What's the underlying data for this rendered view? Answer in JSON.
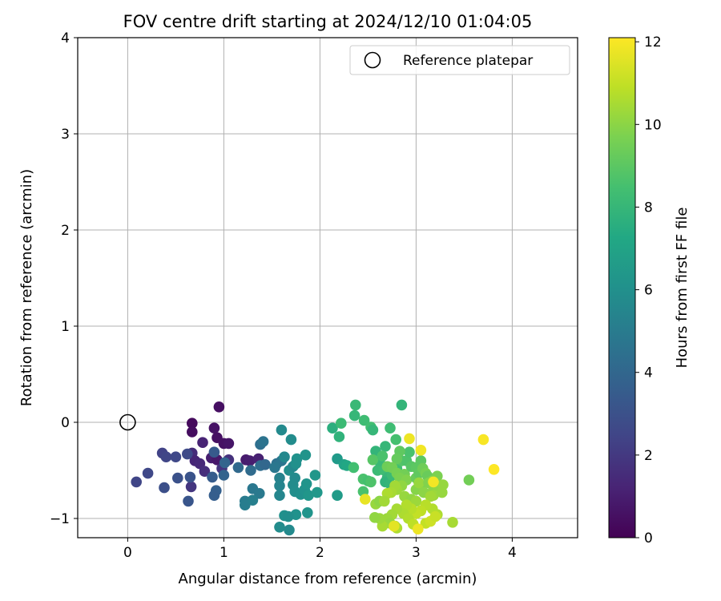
{
  "chart_data": {
    "type": "scatter",
    "title": "FOV centre drift starting at 2024/12/10 01:04:05",
    "xlabel": "Angular distance from reference (arcmin)",
    "ylabel": "Rotation from reference (arcmin)",
    "xlim": [
      -0.52,
      4.68
    ],
    "ylim": [
      -1.2,
      4.0
    ],
    "xticks": [
      "0",
      "1",
      "2",
      "3",
      "4"
    ],
    "yticks": [
      "−1",
      "0",
      "1",
      "2",
      "3",
      "4"
    ],
    "grid": true,
    "legend": {
      "placement": "top-right",
      "entries": [
        "Reference platepar"
      ]
    },
    "reference_point": {
      "x": 0.0,
      "y": 0.0
    },
    "colorbar": {
      "label": "Hours from first FF file",
      "range": [
        0,
        12.1
      ],
      "ticks": [
        "0",
        "2",
        "4",
        "6",
        "8",
        "10",
        "12"
      ],
      "colormap": "viridis"
    },
    "points": [
      {
        "x": 0.67,
        "y": -0.01,
        "c": 0.3
      },
      {
        "x": 0.95,
        "y": 0.16,
        "c": 0.5
      },
      {
        "x": 0.67,
        "y": -0.1,
        "c": 0.4
      },
      {
        "x": 0.9,
        "y": -0.06,
        "c": 0.6
      },
      {
        "x": 0.93,
        "y": -0.16,
        "c": 0.5
      },
      {
        "x": 1.0,
        "y": -0.22,
        "c": 0.6
      },
      {
        "x": 1.05,
        "y": -0.22,
        "c": 0.7
      },
      {
        "x": 0.78,
        "y": -0.21,
        "c": 1.2
      },
      {
        "x": 0.67,
        "y": -0.32,
        "c": 1.5
      },
      {
        "x": 0.7,
        "y": -0.4,
        "c": 1.3
      },
      {
        "x": 0.75,
        "y": -0.43,
        "c": 1.4
      },
      {
        "x": 0.8,
        "y": -0.51,
        "c": 1.6
      },
      {
        "x": 0.87,
        "y": -0.37,
        "c": 1.0
      },
      {
        "x": 0.93,
        "y": -0.39,
        "c": 0.8
      },
      {
        "x": 0.98,
        "y": -0.48,
        "c": 1.8
      },
      {
        "x": 1.05,
        "y": -0.39,
        "c": 1.7
      },
      {
        "x": 0.66,
        "y": -0.67,
        "c": 1.9
      },
      {
        "x": 0.36,
        "y": -0.32,
        "c": 2.4
      },
      {
        "x": 0.4,
        "y": -0.36,
        "c": 2.5
      },
      {
        "x": 0.5,
        "y": -0.36,
        "c": 2.6
      },
      {
        "x": 0.62,
        "y": -0.33,
        "c": 2.7
      },
      {
        "x": 0.21,
        "y": -0.53,
        "c": 2.6
      },
      {
        "x": 0.09,
        "y": -0.62,
        "c": 2.5
      },
      {
        "x": 0.38,
        "y": -0.68,
        "c": 2.9
      },
      {
        "x": 0.52,
        "y": -0.58,
        "c": 3.0
      },
      {
        "x": 0.65,
        "y": -0.57,
        "c": 3.1
      },
      {
        "x": 0.63,
        "y": -0.82,
        "c": 3.2
      },
      {
        "x": 0.9,
        "y": -0.31,
        "c": 3.4
      },
      {
        "x": 0.88,
        "y": -0.57,
        "c": 3.5
      },
      {
        "x": 0.92,
        "y": -0.71,
        "c": 3.7
      },
      {
        "x": 0.9,
        "y": -0.76,
        "c": 3.6
      },
      {
        "x": 1.0,
        "y": -0.55,
        "c": 3.8
      },
      {
        "x": 1.01,
        "y": -0.42,
        "c": 3.9
      },
      {
        "x": 1.23,
        "y": -0.39,
        "c": 0.9
      },
      {
        "x": 1.27,
        "y": -0.4,
        "c": 1.0
      },
      {
        "x": 1.36,
        "y": -0.38,
        "c": 1.1
      },
      {
        "x": 1.15,
        "y": -0.47,
        "c": 4.1
      },
      {
        "x": 1.28,
        "y": -0.5,
        "c": 4.2
      },
      {
        "x": 1.38,
        "y": -0.45,
        "c": 4.3
      },
      {
        "x": 1.43,
        "y": -0.44,
        "c": 4.0
      },
      {
        "x": 1.38,
        "y": -0.23,
        "c": 4.4
      },
      {
        "x": 1.41,
        "y": -0.2,
        "c": 4.6
      },
      {
        "x": 1.3,
        "y": -0.69,
        "c": 4.8
      },
      {
        "x": 1.37,
        "y": -0.74,
        "c": 4.9
      },
      {
        "x": 1.22,
        "y": -0.82,
        "c": 5.0
      },
      {
        "x": 1.22,
        "y": -0.86,
        "c": 5.1
      },
      {
        "x": 1.3,
        "y": -0.81,
        "c": 5.2
      },
      {
        "x": 1.55,
        "y": -0.43,
        "c": 4.5
      },
      {
        "x": 1.6,
        "y": -0.4,
        "c": 4.7
      },
      {
        "x": 1.53,
        "y": -0.47,
        "c": 4.8
      },
      {
        "x": 1.58,
        "y": -0.58,
        "c": 5.3
      },
      {
        "x": 1.58,
        "y": -0.66,
        "c": 5.4
      },
      {
        "x": 1.58,
        "y": -0.76,
        "c": 5.5
      },
      {
        "x": 1.63,
        "y": -0.36,
        "c": 5.6
      },
      {
        "x": 1.6,
        "y": -0.08,
        "c": 5.7
      },
      {
        "x": 1.7,
        "y": -0.18,
        "c": 5.8
      },
      {
        "x": 1.68,
        "y": -0.5,
        "c": 5.9
      },
      {
        "x": 1.72,
        "y": -0.46,
        "c": 5.6
      },
      {
        "x": 1.74,
        "y": -0.58,
        "c": 5.7
      },
      {
        "x": 1.72,
        "y": -0.65,
        "c": 5.8
      },
      {
        "x": 1.74,
        "y": -0.72,
        "c": 5.9
      },
      {
        "x": 1.8,
        "y": -0.75,
        "c": 6.0
      },
      {
        "x": 1.76,
        "y": -0.38,
        "c": 6.1
      },
      {
        "x": 1.75,
        "y": -0.43,
        "c": 6.0
      },
      {
        "x": 1.85,
        "y": -0.34,
        "c": 6.2
      },
      {
        "x": 1.95,
        "y": -0.55,
        "c": 6.3
      },
      {
        "x": 1.84,
        "y": -0.7,
        "c": 6.1
      },
      {
        "x": 1.86,
        "y": -0.64,
        "c": 6.2
      },
      {
        "x": 1.88,
        "y": -0.76,
        "c": 6.3
      },
      {
        "x": 1.97,
        "y": -0.73,
        "c": 6.4
      },
      {
        "x": 1.75,
        "y": -0.96,
        "c": 6.1
      },
      {
        "x": 1.63,
        "y": -0.97,
        "c": 6.0
      },
      {
        "x": 1.67,
        "y": -0.98,
        "c": 5.9
      },
      {
        "x": 1.58,
        "y": -1.09,
        "c": 5.8
      },
      {
        "x": 1.68,
        "y": -1.12,
        "c": 5.7
      },
      {
        "x": 1.87,
        "y": -0.94,
        "c": 6.2
      },
      {
        "x": 2.18,
        "y": -0.38,
        "c": 6.5
      },
      {
        "x": 2.18,
        "y": -0.76,
        "c": 6.6
      },
      {
        "x": 2.25,
        "y": -0.44,
        "c": 7.0
      },
      {
        "x": 2.28,
        "y": -0.45,
        "c": 7.2
      },
      {
        "x": 2.13,
        "y": -0.06,
        "c": 7.6
      },
      {
        "x": 2.2,
        "y": -0.15,
        "c": 7.8
      },
      {
        "x": 2.22,
        "y": -0.01,
        "c": 8.2
      },
      {
        "x": 2.36,
        "y": 0.07,
        "c": 8.0
      },
      {
        "x": 2.37,
        "y": 0.18,
        "c": 8.1
      },
      {
        "x": 2.46,
        "y": 0.02,
        "c": 8.3
      },
      {
        "x": 2.53,
        "y": -0.05,
        "c": 8.4
      },
      {
        "x": 2.55,
        "y": -0.08,
        "c": 8.0
      },
      {
        "x": 2.85,
        "y": 0.18,
        "c": 7.9
      },
      {
        "x": 2.35,
        "y": -0.47,
        "c": 8.4
      },
      {
        "x": 2.45,
        "y": -0.59,
        "c": 8.6
      },
      {
        "x": 2.5,
        "y": -0.61,
        "c": 8.5
      },
      {
        "x": 2.53,
        "y": -0.62,
        "c": 8.7
      },
      {
        "x": 2.45,
        "y": -0.72,
        "c": 8.6
      },
      {
        "x": 2.58,
        "y": -0.3,
        "c": 7.9
      },
      {
        "x": 2.62,
        "y": -0.41,
        "c": 8.1
      },
      {
        "x": 2.55,
        "y": -0.39,
        "c": 8.9
      },
      {
        "x": 2.6,
        "y": -0.5,
        "c": 8.2
      },
      {
        "x": 2.67,
        "y": -0.5,
        "c": 8.3
      },
      {
        "x": 2.7,
        "y": -0.58,
        "c": 8.0
      },
      {
        "x": 2.68,
        "y": -0.62,
        "c": 7.8
      },
      {
        "x": 2.73,
        "y": -0.64,
        "c": 7.9
      },
      {
        "x": 2.75,
        "y": -0.55,
        "c": 8.2
      },
      {
        "x": 2.8,
        "y": -0.48,
        "c": 8.4
      },
      {
        "x": 2.79,
        "y": -0.18,
        "c": 8.5
      },
      {
        "x": 2.73,
        "y": -0.06,
        "c": 8.3
      },
      {
        "x": 2.68,
        "y": -0.25,
        "c": 8.0
      },
      {
        "x": 2.65,
        "y": -0.35,
        "c": 8.6
      },
      {
        "x": 2.85,
        "y": -0.4,
        "c": 8.8
      },
      {
        "x": 2.9,
        "y": -0.4,
        "c": 8.7
      },
      {
        "x": 2.93,
        "y": -0.31,
        "c": 8.6
      },
      {
        "x": 2.83,
        "y": -0.3,
        "c": 9.1
      },
      {
        "x": 2.8,
        "y": -0.38,
        "c": 9.2
      },
      {
        "x": 2.7,
        "y": -0.46,
        "c": 9.4
      },
      {
        "x": 2.75,
        "y": -0.47,
        "c": 9.5
      },
      {
        "x": 2.8,
        "y": -0.53,
        "c": 9.6
      },
      {
        "x": 2.88,
        "y": -0.54,
        "c": 9.5
      },
      {
        "x": 2.83,
        "y": -0.58,
        "c": 9.7
      },
      {
        "x": 2.9,
        "y": -0.6,
        "c": 9.8
      },
      {
        "x": 2.95,
        "y": -0.46,
        "c": 8.9
      },
      {
        "x": 3.0,
        "y": -0.47,
        "c": 9.0
      },
      {
        "x": 3.0,
        "y": -0.58,
        "c": 9.3
      },
      {
        "x": 3.03,
        "y": -0.53,
        "c": 9.1
      },
      {
        "x": 3.05,
        "y": -0.4,
        "c": 9.0
      },
      {
        "x": 3.07,
        "y": -0.48,
        "c": 9.4
      },
      {
        "x": 3.1,
        "y": -0.53,
        "c": 9.6
      },
      {
        "x": 3.12,
        "y": -0.56,
        "c": 9.3
      },
      {
        "x": 3.05,
        "y": -0.66,
        "c": 9.7
      },
      {
        "x": 3.0,
        "y": -0.7,
        "c": 9.9
      },
      {
        "x": 3.08,
        "y": -0.73,
        "c": 10.0
      },
      {
        "x": 3.03,
        "y": -0.63,
        "c": 10.2
      },
      {
        "x": 2.85,
        "y": -0.66,
        "c": 10.1
      },
      {
        "x": 2.8,
        "y": -0.7,
        "c": 10.3
      },
      {
        "x": 2.78,
        "y": -0.66,
        "c": 10.4
      },
      {
        "x": 2.74,
        "y": -0.73,
        "c": 10.5
      },
      {
        "x": 2.7,
        "y": -0.74,
        "c": 10.6
      },
      {
        "x": 2.88,
        "y": -0.77,
        "c": 10.2
      },
      {
        "x": 2.95,
        "y": -0.8,
        "c": 10.1
      },
      {
        "x": 3.0,
        "y": -0.82,
        "c": 10.3
      },
      {
        "x": 3.13,
        "y": -0.63,
        "c": 9.8
      },
      {
        "x": 3.17,
        "y": -0.61,
        "c": 9.9
      },
      {
        "x": 3.22,
        "y": -0.56,
        "c": 9.7
      },
      {
        "x": 3.18,
        "y": -0.7,
        "c": 10.0
      },
      {
        "x": 3.23,
        "y": -0.69,
        "c": 10.1
      },
      {
        "x": 3.28,
        "y": -0.65,
        "c": 10.2
      },
      {
        "x": 3.18,
        "y": -0.76,
        "c": 10.3
      },
      {
        "x": 3.15,
        "y": -0.77,
        "c": 10.4
      },
      {
        "x": 3.27,
        "y": -0.73,
        "c": 10.2
      },
      {
        "x": 3.55,
        "y": -0.6,
        "c": 9.5
      },
      {
        "x": 3.38,
        "y": -1.04,
        "c": 10.5
      },
      {
        "x": 3.22,
        "y": -0.96,
        "c": 10.6
      },
      {
        "x": 3.17,
        "y": -0.9,
        "c": 10.7
      },
      {
        "x": 3.1,
        "y": -0.86,
        "c": 10.8
      },
      {
        "x": 3.05,
        "y": -0.92,
        "c": 10.9
      },
      {
        "x": 3.0,
        "y": -0.95,
        "c": 11.0
      },
      {
        "x": 2.95,
        "y": -0.9,
        "c": 10.8
      },
      {
        "x": 2.9,
        "y": -0.86,
        "c": 10.7
      },
      {
        "x": 2.87,
        "y": -0.95,
        "c": 10.6
      },
      {
        "x": 2.8,
        "y": -0.9,
        "c": 10.5
      },
      {
        "x": 2.75,
        "y": -0.96,
        "c": 10.4
      },
      {
        "x": 2.7,
        "y": -1.0,
        "c": 10.3
      },
      {
        "x": 2.73,
        "y": -1.05,
        "c": 10.2
      },
      {
        "x": 2.78,
        "y": -1.08,
        "c": 10.4
      },
      {
        "x": 2.8,
        "y": -1.1,
        "c": 10.6
      },
      {
        "x": 2.65,
        "y": -1.08,
        "c": 10.5
      },
      {
        "x": 2.62,
        "y": -1.0,
        "c": 10.3
      },
      {
        "x": 2.57,
        "y": -0.99,
        "c": 10.1
      },
      {
        "x": 2.58,
        "y": -0.85,
        "c": 10.2
      },
      {
        "x": 2.62,
        "y": -0.82,
        "c": 10.0
      },
      {
        "x": 2.67,
        "y": -0.82,
        "c": 10.4
      },
      {
        "x": 2.92,
        "y": -1.0,
        "c": 10.7
      },
      {
        "x": 2.97,
        "y": -1.06,
        "c": 10.9
      },
      {
        "x": 3.1,
        "y": -1.05,
        "c": 11.0
      },
      {
        "x": 3.15,
        "y": -1.03,
        "c": 11.2
      },
      {
        "x": 3.2,
        "y": -0.98,
        "c": 11.1
      },
      {
        "x": 2.93,
        "y": -0.17,
        "c": 11.8
      },
      {
        "x": 3.05,
        "y": -0.29,
        "c": 11.9
      },
      {
        "x": 2.47,
        "y": -0.8,
        "c": 11.7
      },
      {
        "x": 2.77,
        "y": -1.08,
        "c": 11.6
      },
      {
        "x": 3.02,
        "y": -1.11,
        "c": 11.8
      },
      {
        "x": 3.18,
        "y": -0.62,
        "c": 11.9
      },
      {
        "x": 3.7,
        "y": -0.18,
        "c": 12.0
      },
      {
        "x": 3.81,
        "y": -0.49,
        "c": 12.1
      }
    ]
  }
}
